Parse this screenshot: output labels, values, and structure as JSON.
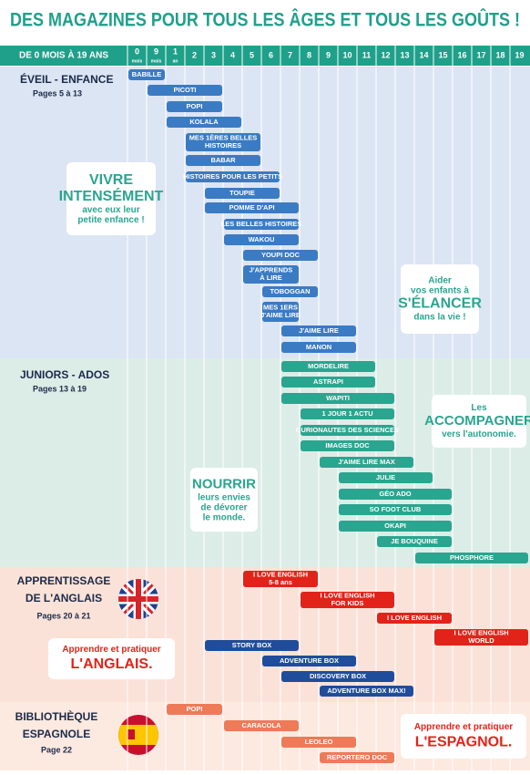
{
  "title": "DES MAGAZINES POUR TOUS LES ÂGES ET TOUS LES GOÛTS !",
  "header": {
    "label": "DE 0 MOIS À 19 ANS",
    "columns": [
      "0",
      "9",
      "1",
      "2",
      "3",
      "4",
      "5",
      "6",
      "7",
      "8",
      "9",
      "10",
      "11",
      "12",
      "13",
      "14",
      "15",
      "16",
      "17",
      "18",
      "19"
    ],
    "column_units": [
      "mois",
      "mois",
      "an"
    ]
  },
  "sections": [
    {
      "title": [
        "ÉVEIL - ENFANCE"
      ],
      "pages": "Pages 5 à 13",
      "color": "#3a7bc4",
      "bars": [
        {
          "label": [
            "BABILLE"
          ]
        },
        {
          "label": [
            "PICOTI"
          ]
        },
        {
          "label": [
            "POPI"
          ]
        },
        {
          "label": [
            "KOLALA"
          ]
        },
        {
          "label": [
            "MES 1ÈRES BELLES",
            "HISTOIRES"
          ]
        },
        {
          "label": [
            "BABAR"
          ]
        },
        {
          "label": [
            "HISTOIRES POUR LES PETITS"
          ]
        },
        {
          "label": [
            "TOUPIE"
          ]
        },
        {
          "label": [
            "POMME D'API"
          ]
        },
        {
          "label": [
            "LES BELLES HISTOIRES"
          ]
        },
        {
          "label": [
            "WAKOU"
          ]
        },
        {
          "label": [
            "YOUPI DOC"
          ]
        },
        {
          "label": [
            "J'APPRENDS",
            "À LIRE"
          ]
        },
        {
          "label": [
            "TOBOGGAN"
          ]
        },
        {
          "label": [
            "MES 1ERS",
            "J'AIME LIRE"
          ]
        },
        {
          "label": [
            "J'AIME LIRE"
          ]
        },
        {
          "label": [
            "MANON"
          ]
        }
      ],
      "callouts": [
        {
          "lines": [
            "VIVRE",
            "INTENSÉMENT",
            "avec eux leur",
            "petite enfance !"
          ]
        },
        {
          "lines": [
            "Aider",
            "vos enfants à",
            "S'ÉLANCER",
            "dans la vie !"
          ]
        }
      ]
    },
    {
      "title": [
        "JUNIORS - ADOS"
      ],
      "pages": "Pages 13 à 19",
      "color": "#2aa58f",
      "bars": [
        {
          "label": [
            "MORDELIRE"
          ]
        },
        {
          "label": [
            "ASTRAPI"
          ]
        },
        {
          "label": [
            "WAPITI"
          ]
        },
        {
          "label": [
            "1 JOUR 1 ACTU"
          ]
        },
        {
          "label": [
            "CURIONAUTES DES SCIENCES"
          ]
        },
        {
          "label": [
            "IMAGES DOC"
          ]
        },
        {
          "label": [
            "J'AIME LIRE MAX"
          ]
        },
        {
          "label": [
            "JULIE"
          ]
        },
        {
          "label": [
            "GÉO ADO"
          ]
        },
        {
          "label": [
            "SO FOOT CLUB"
          ]
        },
        {
          "label": [
            "OKAPI"
          ]
        },
        {
          "label": [
            "JE BOUQUINE"
          ]
        },
        {
          "label": [
            "PHOSPHORE"
          ]
        }
      ],
      "callouts": [
        {
          "lines": [
            "Les",
            "ACCOMPAGNER",
            "vers l'autonomie."
          ]
        },
        {
          "lines": [
            "NOURRIR",
            "leurs envies",
            "de dévorer",
            "le monde."
          ]
        }
      ]
    },
    {
      "title": [
        "APPRENTISSAGE",
        "DE L'ANGLAIS"
      ],
      "pages": "Pages 20 à 21",
      "color": "#e2231a",
      "bars": [
        {
          "label": [
            "I LOVE ENGLISH",
            "5-8 ans"
          ]
        },
        {
          "label": [
            "I LOVE ENGLISH",
            "FOR KIDS"
          ]
        },
        {
          "label": [
            "I LOVE ENGLISH"
          ]
        },
        {
          "label": [
            "I LOVE ENGLISH",
            "WORLD"
          ]
        },
        {
          "label": [
            "STORY BOX"
          ],
          "color": "#1f4d9b"
        },
        {
          "label": [
            "ADVENTURE BOX"
          ],
          "color": "#1f4d9b"
        },
        {
          "label": [
            "DISCOVERY BOX"
          ],
          "color": "#1f4d9b"
        },
        {
          "label": [
            "ADVENTURE BOX MAX!"
          ],
          "color": "#1f4d9b"
        }
      ],
      "callouts": [
        {
          "lines": [
            "Apprendre et pratiquer",
            "L'ANGLAIS."
          ]
        }
      ]
    },
    {
      "title": [
        "BIBLIOTHÈQUE",
        "ESPAGNOLE"
      ],
      "pages": "Page 22",
      "color": "#ee7a58",
      "bars": [
        {
          "label": [
            "POPI"
          ]
        },
        {
          "label": [
            "CARACOLA"
          ]
        },
        {
          "label": [
            "LEOLEO"
          ]
        },
        {
          "label": [
            "REPORTERO DOC"
          ]
        }
      ],
      "callouts": [
        {
          "lines": [
            "Apprendre et pratiquer",
            "L'ESPAGNOL."
          ]
        }
      ]
    }
  ]
}
